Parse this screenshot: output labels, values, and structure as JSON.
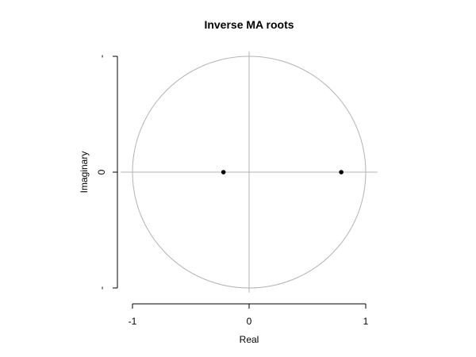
{
  "chart_data": {
    "type": "scatter",
    "title": "Inverse MA roots",
    "xlabel": "Real",
    "ylabel": "Imaginary",
    "xlim": [
      -1,
      1
    ],
    "ylim": [
      -1,
      1
    ],
    "x_ticks": [
      -1,
      0,
      1
    ],
    "x_tick_labels": [
      "-1",
      "0",
      "1"
    ],
    "y_ticks": [
      -1,
      0,
      1
    ],
    "y_tick_labels": [
      "-",
      "0",
      "-"
    ],
    "unit_circle": true,
    "reference_lines": {
      "x": 0,
      "y": 0
    },
    "series": [
      {
        "points": [
          {
            "x": -0.22,
            "y": 0
          },
          {
            "x": 0.79,
            "y": 0
          }
        ]
      }
    ],
    "colors": {
      "points": "#000000",
      "circle": "#b3b3b3",
      "reference": "#b3b3b3",
      "axes": "#000000"
    }
  }
}
